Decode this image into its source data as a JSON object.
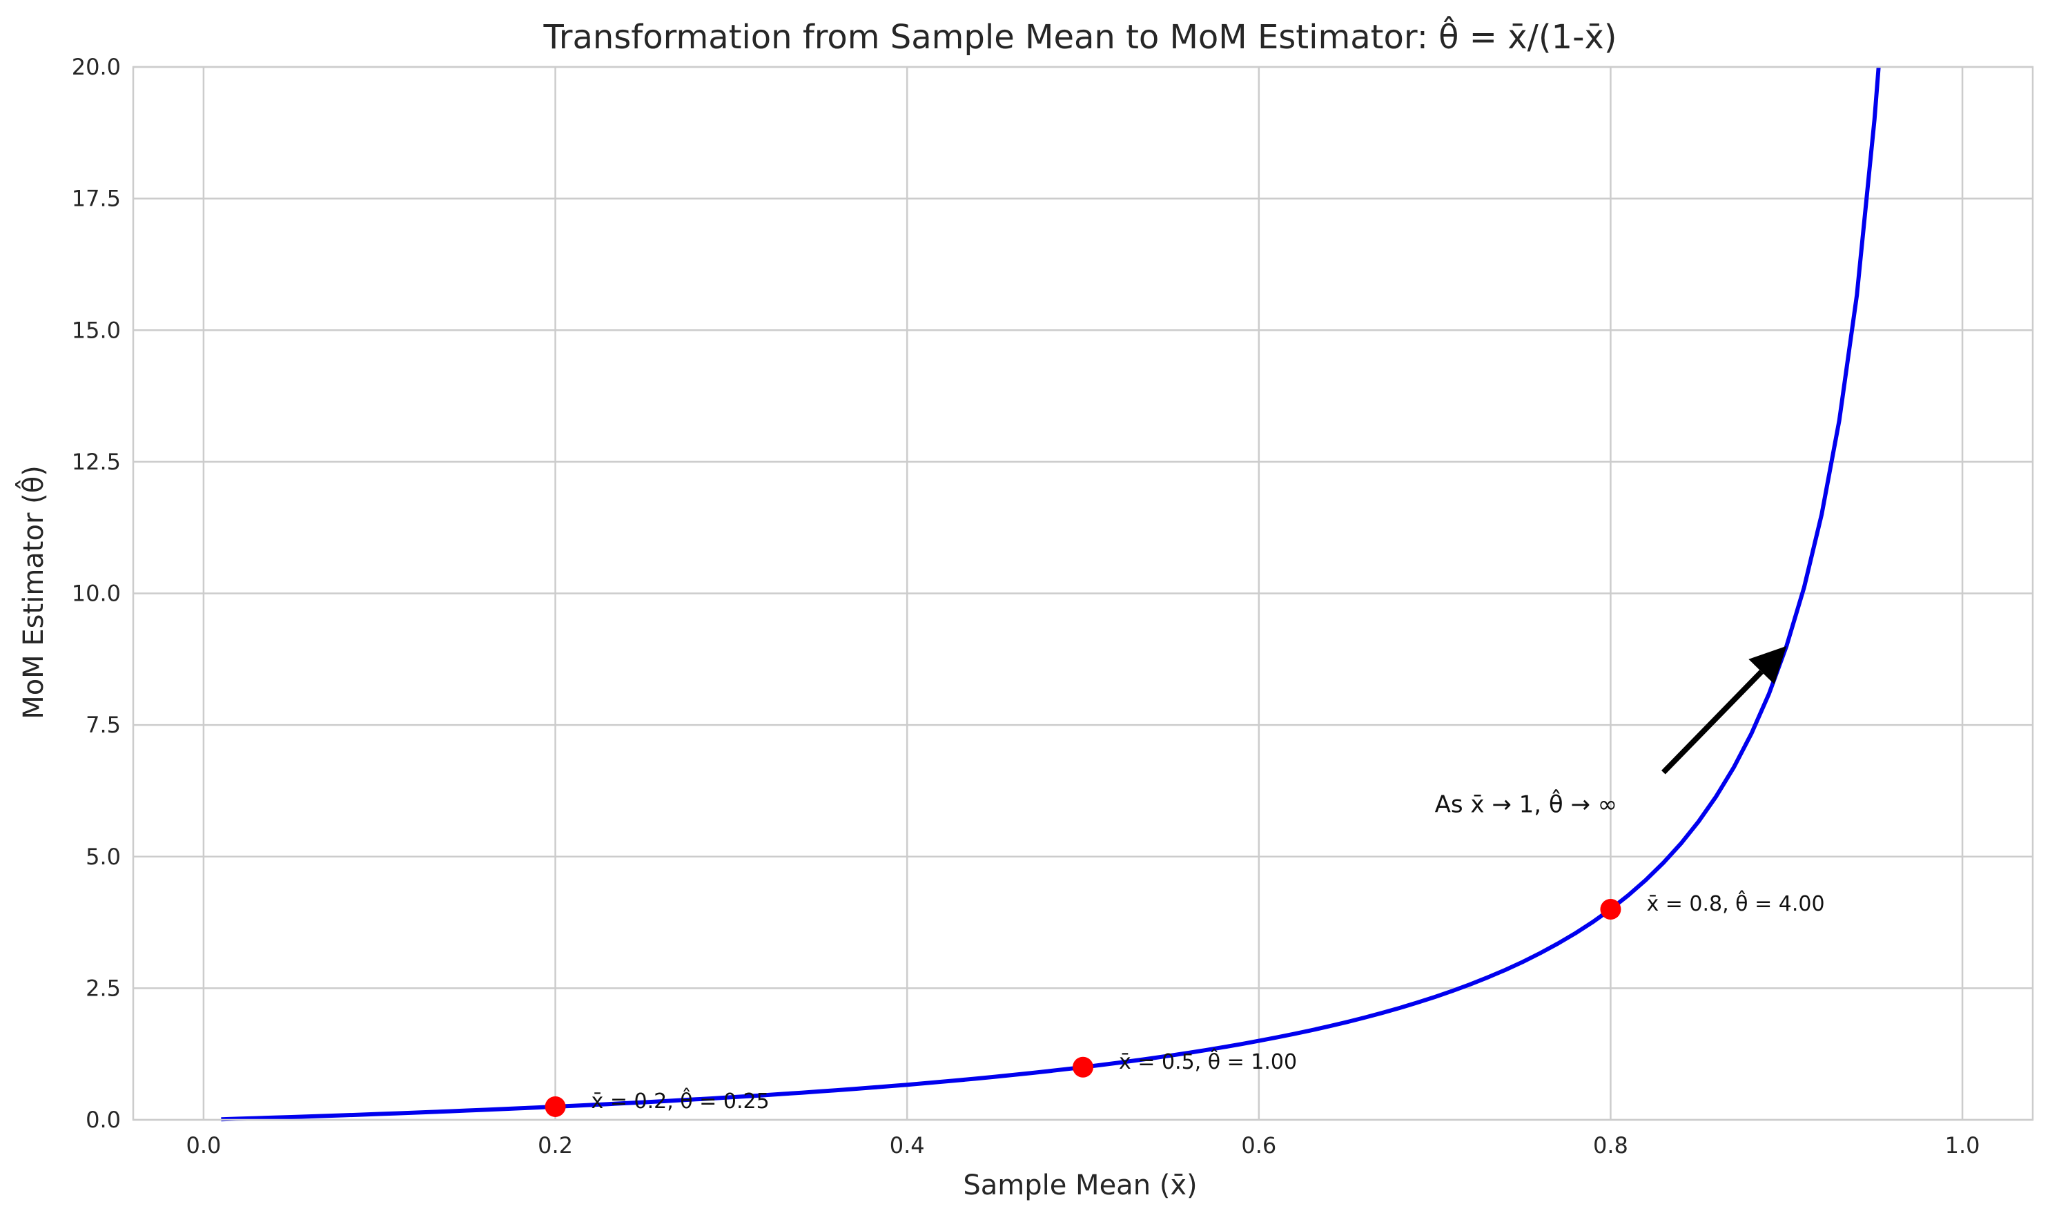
{
  "chart_data": {
    "type": "line",
    "title": "Transformation from Sample Mean to MoM Estimator: θ̂ = x̄/(1-x̄)",
    "xlabel": "Sample Mean (x̄)",
    "ylabel": "MoM Estimator (θ̂)",
    "xlim": [
      -0.04,
      1.04
    ],
    "ylim": [
      0,
      20
    ],
    "x_ticks": [
      0.0,
      0.2,
      0.4,
      0.6,
      0.8,
      1.0
    ],
    "x_tick_labels": [
      "0.0",
      "0.2",
      "0.4",
      "0.6",
      "0.8",
      "1.0"
    ],
    "y_ticks": [
      0.0,
      2.5,
      5.0,
      7.5,
      10.0,
      12.5,
      15.0,
      17.5,
      20.0
    ],
    "y_tick_labels": [
      "0.0",
      "2.5",
      "5.0",
      "7.5",
      "10.0",
      "12.5",
      "15.0",
      "17.5",
      "20.0"
    ],
    "grid": true,
    "series": [
      {
        "name": "θ̂ = x̄/(1-x̄)",
        "color": "#0000ee",
        "function": "x/(1-x)",
        "x_range": [
          0.01,
          0.99
        ]
      }
    ],
    "highlight_points": [
      {
        "x": 0.2,
        "y": 0.25,
        "label": "x̄ = 0.2, θ̂ = 0.25"
      },
      {
        "x": 0.5,
        "y": 1.0,
        "label": "x̄ = 0.5, θ̂ = 1.00"
      },
      {
        "x": 0.8,
        "y": 4.0,
        "label": "x̄ = 0.8, θ̂ = 4.00"
      }
    ],
    "point_color": "#ff0000",
    "annotation": {
      "text": "As x̄ → 1, θ̂ → ∞",
      "text_x": 0.7,
      "text_y": 6.0,
      "arrow_from": [
        0.83,
        6.6
      ],
      "arrow_to": [
        0.9,
        9.0
      ]
    }
  }
}
